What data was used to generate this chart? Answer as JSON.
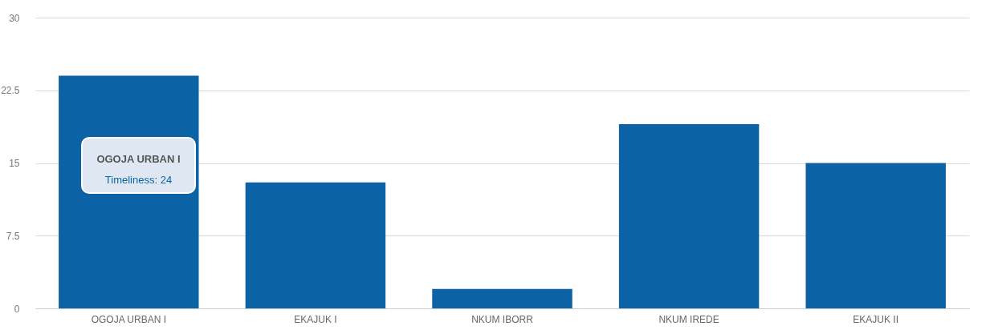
{
  "chart_data": {
    "type": "bar",
    "categories": [
      "OGOJA URBAN I",
      "EKAJUK I",
      "NKUM IBORR",
      "NKUM IREDE",
      "EKAJUK II"
    ],
    "series": [
      {
        "color": "#0b62a4",
        "values": [
          24,
          13,
          2,
          19,
          15
        ]
      }
    ],
    "ylim": [
      0,
      30
    ],
    "yticks": [
      0,
      7.5,
      15,
      22.5,
      30
    ],
    "grid": "y",
    "annotations": [
      "OGOJA URBAN I",
      "Timeliness: 24"
    ]
  }
}
